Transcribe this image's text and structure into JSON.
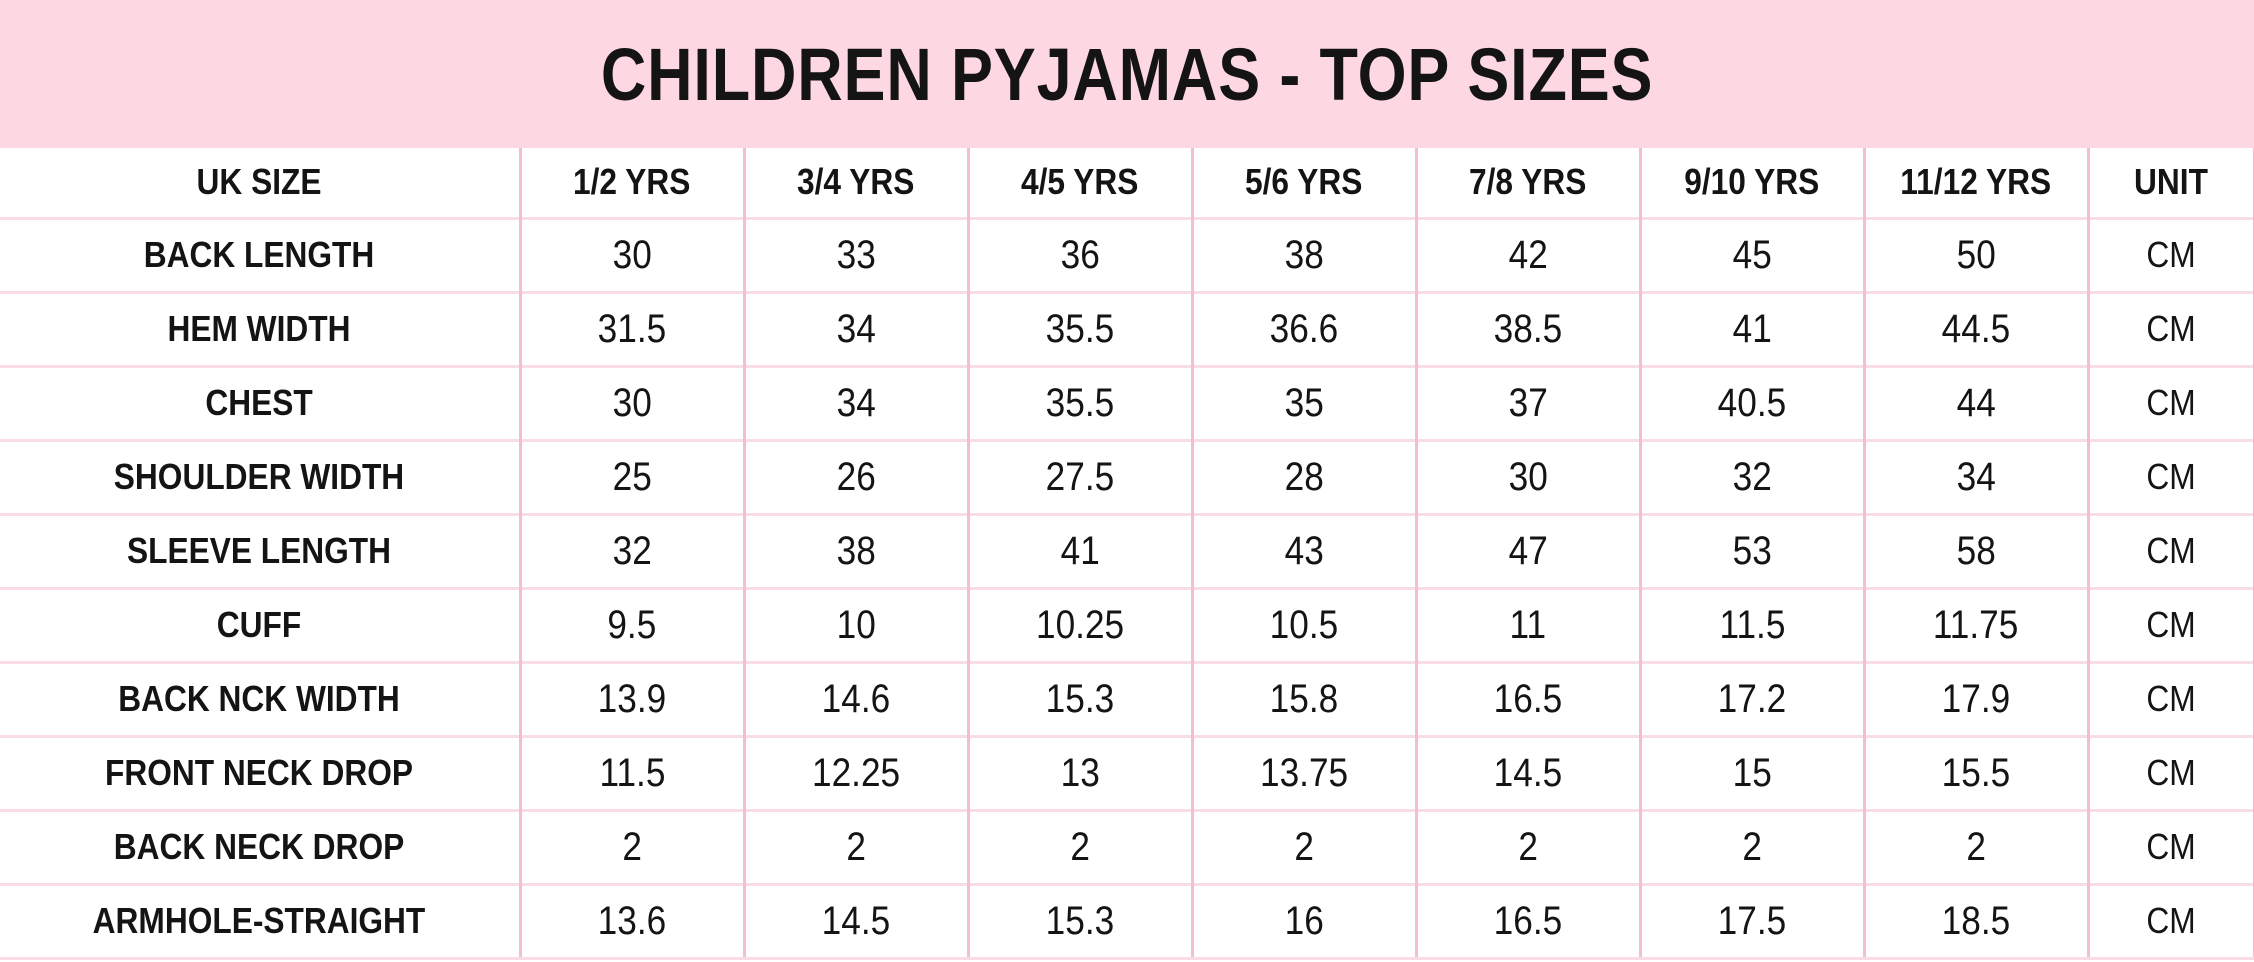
{
  "title": "CHILDREN PYJAMAS - TOP SIZES",
  "colors": {
    "banner_background": "#fdd7e1",
    "vertical_grid_line": "#f5bcd2",
    "horizontal_grid_line": "#fadce6",
    "text": "#141414",
    "cell_background": "#ffffff"
  },
  "chart_data": {
    "type": "table",
    "title": "CHILDREN PYJAMAS - TOP SIZES",
    "columns": [
      "UK SIZE",
      "1/2 YRS",
      "3/4 YRS",
      "4/5 YRS",
      "5/6 YRS",
      "7/8 YRS",
      "9/10 YRS",
      "11/12 YRS",
      "UNIT"
    ],
    "rows": [
      {
        "label": "BACK LENGTH",
        "values": [
          "30",
          "33",
          "36",
          "38",
          "42",
          "45",
          "50"
        ],
        "unit": "CM"
      },
      {
        "label": "HEM WIDTH",
        "values": [
          "31.5",
          "34",
          "35.5",
          "36.6",
          "38.5",
          "41",
          "44.5"
        ],
        "unit": "CM"
      },
      {
        "label": "CHEST",
        "values": [
          "30",
          "34",
          "35.5",
          "35",
          "37",
          "40.5",
          "44"
        ],
        "unit": "CM"
      },
      {
        "label": "SHOULDER WIDTH",
        "values": [
          "25",
          "26",
          "27.5",
          "28",
          "30",
          "32",
          "34"
        ],
        "unit": "CM"
      },
      {
        "label": "SLEEVE LENGTH",
        "values": [
          "32",
          "38",
          "41",
          "43",
          "47",
          "53",
          "58"
        ],
        "unit": "CM"
      },
      {
        "label": "CUFF",
        "values": [
          "9.5",
          "10",
          "10.25",
          "10.5",
          "11",
          "11.5",
          "11.75"
        ],
        "unit": "CM"
      },
      {
        "label": "BACK NCK WIDTH",
        "values": [
          "13.9",
          "14.6",
          "15.3",
          "15.8",
          "16.5",
          "17.2",
          "17.9"
        ],
        "unit": "CM"
      },
      {
        "label": "FRONT NECK DROP",
        "values": [
          "11.5",
          "12.25",
          "13",
          "13.75",
          "14.5",
          "15",
          "15.5"
        ],
        "unit": "CM"
      },
      {
        "label": "BACK NECK DROP",
        "values": [
          "2",
          "2",
          "2",
          "2",
          "2",
          "2",
          "2"
        ],
        "unit": "CM"
      },
      {
        "label": "ARMHOLE-STRAIGHT",
        "values": [
          "13.6",
          "14.5",
          "15.3",
          "16",
          "16.5",
          "17.5",
          "18.5"
        ],
        "unit": "CM"
      }
    ]
  }
}
